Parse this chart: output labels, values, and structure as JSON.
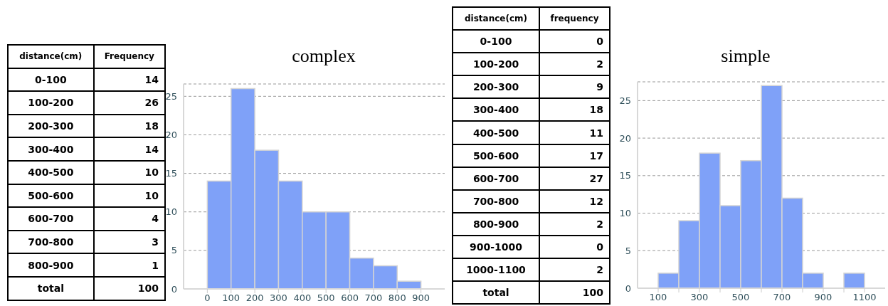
{
  "chart_data": [
    {
      "type": "other",
      "xlabel": "distance(cm)",
      "ylabel": "Frequency",
      "categories": [
        "0-100",
        "100-200",
        "200-300",
        "300-400",
        "400-500",
        "500-600",
        "600-700",
        "700-800",
        "800-900",
        "total"
      ],
      "values": [
        14,
        26,
        18,
        14,
        10,
        10,
        4,
        3,
        1,
        100
      ],
      "data_labels": true
    },
    {
      "type": "histogram",
      "title": "complex",
      "bins": [
        0,
        100,
        200,
        300,
        400,
        500,
        600,
        700,
        800,
        900
      ],
      "values": [
        14,
        26,
        18,
        14,
        10,
        10,
        4,
        3,
        1
      ],
      "color": "#7fa1f8",
      "xlim": [
        -100,
        1000
      ],
      "xticks": [
        0,
        100,
        200,
        300,
        400,
        500,
        600,
        700,
        800,
        900
      ],
      "ylim": [
        0,
        26.6
      ],
      "yticks": [
        0,
        5,
        10,
        15,
        20,
        25
      ],
      "grid": "y"
    },
    {
      "type": "other",
      "xlabel": "distance(cm)",
      "ylabel": "frequency",
      "categories": [
        "0-100",
        "100-200",
        "200-300",
        "300-400",
        "400-500",
        "500-600",
        "600-700",
        "700-800",
        "800-900",
        "900-1000",
        "1000-1100",
        "total"
      ],
      "values": [
        0,
        2,
        9,
        18,
        11,
        17,
        27,
        12,
        2,
        0,
        2,
        100
      ],
      "data_labels": true
    },
    {
      "type": "histogram",
      "title": "simple",
      "bins": [
        0,
        100,
        200,
        300,
        400,
        500,
        600,
        700,
        800,
        900,
        1000,
        1100
      ],
      "values": [
        0,
        2,
        9,
        18,
        11,
        17,
        27,
        12,
        2,
        0,
        2
      ],
      "color": "#7fa1f8",
      "xlim": [
        0,
        1200
      ],
      "xticks": [
        100,
        {
          "value": 200,
          "label": null
        },
        300,
        {
          "value": 400,
          "label": null
        },
        500,
        {
          "value": 600,
          "label": null
        },
        700,
        {
          "value": 800,
          "label": null
        },
        900,
        {
          "value": 1000,
          "label": null
        },
        1100
      ],
      "ylim": [
        0,
        27.5
      ],
      "yticks": [
        0,
        5,
        10,
        15,
        20,
        25
      ],
      "grid": "y"
    }
  ]
}
